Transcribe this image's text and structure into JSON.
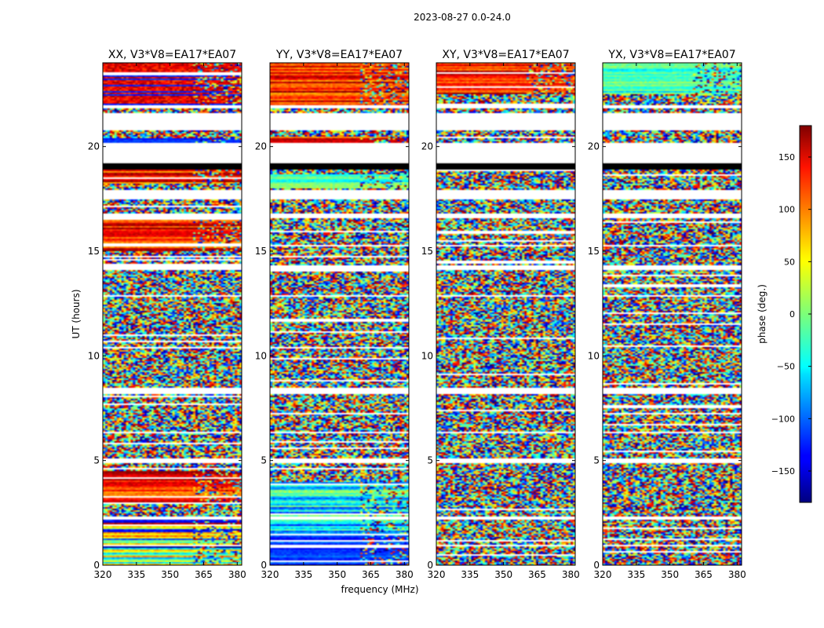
{
  "suptitle": "2023-08-27 0.0-24.0",
  "chart_data": {
    "type": "heatmap",
    "xlabel": "frequency (MHz)",
    "ylabel": "UT (hours)",
    "xlim": [
      320,
      382
    ],
    "ylim": [
      0,
      24
    ],
    "xticks": [
      320,
      335,
      350,
      365,
      380
    ],
    "yticks": [
      0,
      5,
      10,
      15,
      20
    ],
    "panels": [
      {
        "title": "XX, V3*V8=EA17*EA07",
        "structured": [
          [
            0.0,
            2.2,
            "gradient"
          ],
          [
            3.0,
            4.5,
            "warm"
          ],
          [
            15.0,
            16.7,
            "warm"
          ],
          [
            20.2,
            20.4,
            "blue"
          ],
          [
            18.2,
            18.9,
            "warm"
          ],
          [
            22.0,
            24.0,
            "bands"
          ]
        ]
      },
      {
        "title": "YY, V3*V8=EA17*EA07",
        "structured": [
          [
            0.0,
            1.5,
            "blue"
          ],
          [
            1.5,
            4.0,
            "cool"
          ],
          [
            20.0,
            20.5,
            "warm"
          ],
          [
            22.0,
            24.0,
            "warm"
          ],
          [
            18.0,
            18.7,
            "cyan"
          ]
        ]
      },
      {
        "title": "XY, V3*V8=EA17*EA07",
        "structured": [
          [
            22.5,
            24.0,
            "warm"
          ]
        ]
      },
      {
        "title": "YX, V3*V8=EA17*EA07",
        "structured": [
          [
            22.5,
            24.0,
            "cyan"
          ]
        ]
      }
    ],
    "flagged_ut_ranges": [
      [
        0.9,
        1.0
      ],
      [
        2.2,
        2.3
      ],
      [
        4.9,
        5.1
      ],
      [
        6.3,
        6.4
      ],
      [
        8.2,
        8.5
      ],
      [
        12.8,
        12.9
      ],
      [
        14.1,
        14.3
      ],
      [
        15.2,
        15.3
      ],
      [
        16.6,
        16.8
      ],
      [
        17.5,
        17.9
      ],
      [
        19.2,
        20.2
      ],
      [
        20.8,
        21.6
      ],
      [
        21.8,
        22.0
      ]
    ],
    "black_ut_ranges": [
      [
        18.9,
        19.2
      ]
    ],
    "colorbar": {
      "label": "phase (deg.)",
      "range": [
        -180,
        180
      ],
      "ticks": [
        150,
        100,
        50,
        0,
        -50,
        -100,
        -150
      ],
      "tick_labels": [
        "150",
        "100",
        "50",
        "0",
        "−50",
        "−100",
        "−150"
      ],
      "colormap": "jet"
    }
  }
}
